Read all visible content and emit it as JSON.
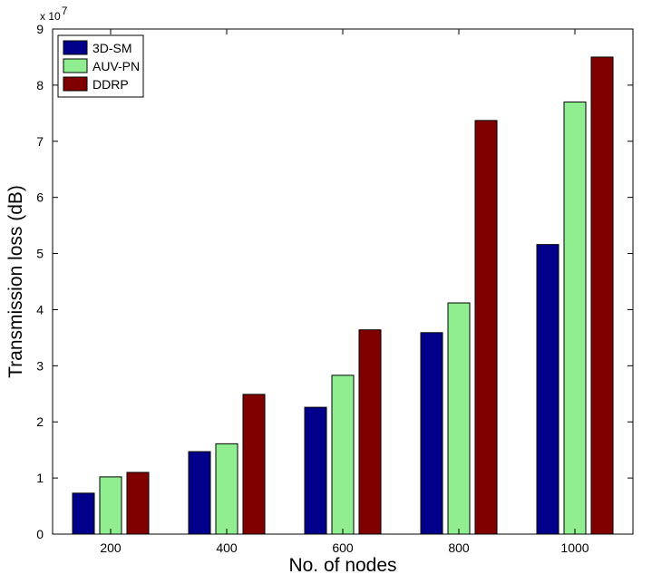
{
  "chart_data": {
    "type": "bar",
    "categories": [
      "200",
      "400",
      "600",
      "800",
      "1000"
    ],
    "series": [
      {
        "name": "3D-SM",
        "color": "#00008b",
        "values": [
          0.73,
          1.47,
          2.26,
          3.59,
          5.16
        ]
      },
      {
        "name": "AUV-PN",
        "color": "#90ee90",
        "values": [
          1.02,
          1.61,
          2.83,
          4.12,
          7.7
        ]
      },
      {
        "name": "DDRP",
        "color": "#800000",
        "values": [
          1.1,
          2.49,
          3.64,
          7.37,
          8.5
        ]
      }
    ],
    "xlabel": "No. of nodes",
    "ylabel": "Transmission loss (dB)",
    "ylim": [
      0,
      9
    ],
    "yticks": [
      "0",
      "1",
      "2",
      "3",
      "4",
      "5",
      "6",
      "7",
      "8",
      "9"
    ],
    "y_multiplier": {
      "base": "x 10",
      "exponent": "7"
    },
    "grid": false,
    "legend": "top-left"
  }
}
